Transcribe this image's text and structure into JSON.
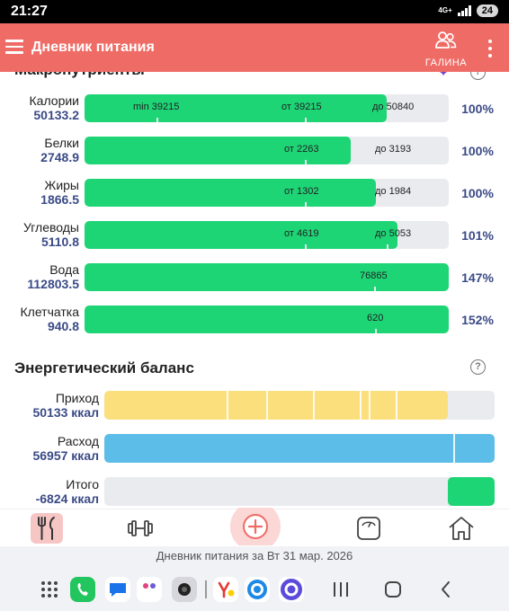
{
  "status_bar": {
    "time": "21:27",
    "network": "4G+",
    "battery": "24"
  },
  "app_bar": {
    "title": "Дневник питания",
    "user_name": "ГАЛИНА"
  },
  "macros": {
    "title": "Макронутриенты",
    "rows": [
      {
        "name": "Калории",
        "value": "50133.2",
        "fill": 0.83,
        "labels": [
          "min 39215",
          "от 39215",
          "до 50840"
        ],
        "percent": "100%"
      },
      {
        "name": "Белки",
        "value": "2748.9",
        "fill": 0.73,
        "labels": [
          "от 2263",
          "до 3193"
        ],
        "percent": "100%"
      },
      {
        "name": "Жиры",
        "value": "1866.5",
        "fill": 0.8,
        "labels": [
          "от 1302",
          "до 1984"
        ],
        "percent": "100%"
      },
      {
        "name": "Углеводы",
        "value": "5110.8",
        "fill": 0.86,
        "labels": [
          "от 4619",
          "до 5053"
        ],
        "percent": "101%"
      },
      {
        "name": "Вода",
        "value": "112803.5",
        "fill": 1.0,
        "labels": [
          "76865"
        ],
        "percent": "147%"
      },
      {
        "name": "Клетчатка",
        "value": "940.8",
        "fill": 1.0,
        "labels": [
          "620"
        ],
        "percent": "152%"
      }
    ]
  },
  "energy": {
    "title": "Энергетический баланс",
    "rows": [
      {
        "name": "Приход",
        "value": "50133 ккал",
        "color": "#fbdf7d",
        "fill": 0.88
      },
      {
        "name": "Расход",
        "value": "56957 ккал",
        "color": "#5cbde9",
        "fill": 1.0
      },
      {
        "name": "Итого",
        "value": "-6824 ккал",
        "color": "#1ed576",
        "fill": 0.12
      }
    ]
  },
  "footer": {
    "caption": "Дневник питания за Вт 31 мар. 2026"
  },
  "colors": {
    "accent": "#ef6c66",
    "progress": "#1ed576",
    "value_text": "#3a4a86"
  }
}
